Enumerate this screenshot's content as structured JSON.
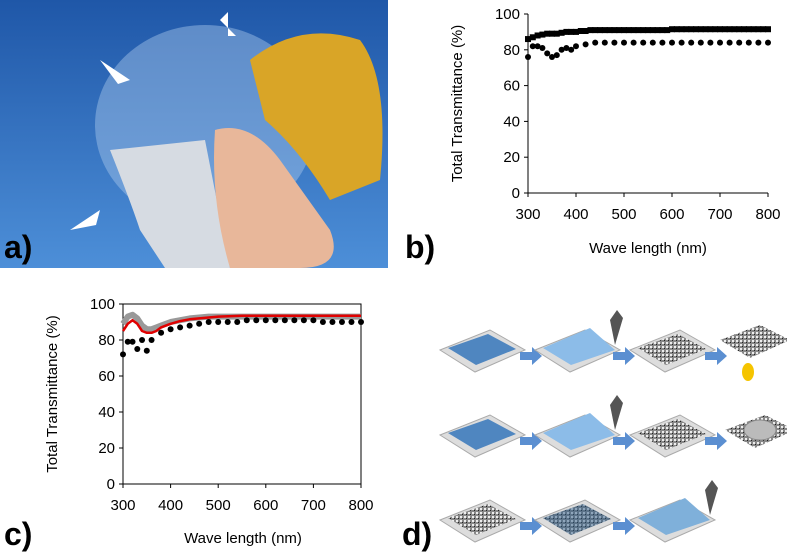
{
  "panels": {
    "a": "a)",
    "b": "b)",
    "c": "c)",
    "d": "d)"
  },
  "chart_data": [
    {
      "type": "scatter",
      "ylabel": "Total Transmittance (%)",
      "xlabel": "Wave length (nm)",
      "xlim": [
        300,
        800
      ],
      "ylim": [
        0,
        100
      ],
      "xticks": [
        300,
        400,
        500,
        600,
        700,
        800
      ],
      "yticks": [
        0,
        20,
        40,
        60,
        80,
        100
      ],
      "series": [
        {
          "style": "squares",
          "color": "#000000",
          "x": [
            300,
            310,
            320,
            330,
            340,
            350,
            360,
            370,
            380,
            390,
            400,
            410,
            420,
            430,
            440,
            450,
            460,
            470,
            480,
            490,
            500,
            510,
            520,
            530,
            540,
            550,
            560,
            570,
            580,
            590,
            600,
            610,
            620,
            630,
            640,
            650,
            660,
            670,
            680,
            690,
            700,
            710,
            720,
            730,
            740,
            750,
            760,
            770,
            780,
            790,
            800
          ],
          "values": [
            86,
            87,
            88,
            88.5,
            89,
            89,
            89,
            89.5,
            90,
            90,
            90,
            90.5,
            90.5,
            91,
            91,
            91,
            91,
            91,
            91,
            91,
            91,
            91,
            91,
            91,
            91,
            91,
            91,
            91,
            91,
            91,
            91.5,
            91.5,
            91.5,
            91.5,
            91.5,
            91.5,
            91.5,
            91.5,
            91.5,
            91.5,
            91.5,
            91.5,
            91.5,
            91.5,
            91.5,
            91.5,
            91.5,
            91.5,
            91.5,
            91.5,
            91.5
          ]
        },
        {
          "style": "dots",
          "color": "#000000",
          "x": [
            300,
            310,
            320,
            330,
            340,
            350,
            360,
            370,
            380,
            390,
            400,
            420,
            440,
            460,
            480,
            500,
            520,
            540,
            560,
            580,
            600,
            620,
            640,
            660,
            680,
            700,
            720,
            740,
            760,
            780,
            800
          ],
          "values": [
            76,
            82,
            82,
            81,
            78,
            76,
            77,
            80,
            81,
            80,
            82,
            83,
            84,
            84,
            84,
            84,
            84,
            84,
            84,
            84,
            84,
            84,
            84,
            84,
            84,
            84,
            84,
            84,
            84,
            84,
            84
          ]
        }
      ]
    },
    {
      "type": "line",
      "ylabel": "Total Transmittance (%)",
      "xlabel": "Wave length (nm)",
      "xlim": [
        300,
        800
      ],
      "ylim": [
        0,
        100
      ],
      "xticks": [
        300,
        400,
        500,
        600,
        700,
        800
      ],
      "yticks": [
        0,
        20,
        40,
        60,
        80,
        100
      ],
      "series": [
        {
          "style": "thick-line",
          "color": "#999999",
          "x": [
            300,
            310,
            320,
            330,
            340,
            350,
            360,
            370,
            380,
            390,
            400,
            420,
            440,
            460,
            480,
            500,
            550,
            600,
            650,
            700,
            750,
            800
          ],
          "values": [
            89,
            93,
            94,
            92,
            88,
            86,
            86,
            87,
            88,
            89,
            90,
            91,
            92,
            92.5,
            93,
            93,
            93,
            93,
            93,
            93,
            93,
            93
          ]
        },
        {
          "style": "line",
          "color": "#e00000",
          "x": [
            300,
            310,
            320,
            330,
            340,
            350,
            360,
            370,
            380,
            390,
            400,
            420,
            440,
            460,
            480,
            500,
            550,
            600,
            650,
            700,
            750,
            800
          ],
          "values": [
            85,
            89,
            91,
            89,
            85,
            84,
            84,
            85,
            87,
            88,
            89,
            90.5,
            91.5,
            92,
            92.5,
            93,
            93.5,
            93.5,
            93.5,
            93.5,
            93.5,
            93.5
          ]
        },
        {
          "style": "dots",
          "color": "#000000",
          "x": [
            300,
            310,
            320,
            330,
            340,
            350,
            360,
            380,
            400,
            420,
            440,
            460,
            480,
            500,
            520,
            540,
            560,
            580,
            600,
            620,
            640,
            660,
            680,
            700,
            720,
            740,
            760,
            780,
            800
          ],
          "values": [
            72,
            79,
            79,
            75,
            80,
            74,
            80,
            84,
            86,
            87,
            88,
            89,
            90,
            90,
            90,
            90,
            91,
            91,
            91,
            91,
            91,
            91,
            91,
            91,
            90,
            90,
            90,
            90,
            90
          ]
        }
      ]
    }
  ]
}
